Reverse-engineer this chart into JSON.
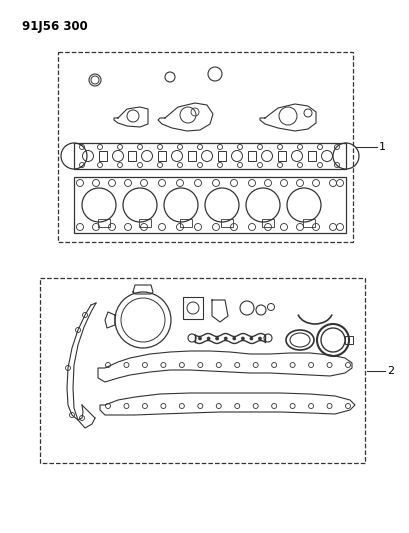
{
  "bg_color": "#ffffff",
  "title_text": "91J56 300",
  "label_1": "1",
  "label_2": "2",
  "fig_width": 4.1,
  "fig_height": 5.33,
  "dpi": 100
}
